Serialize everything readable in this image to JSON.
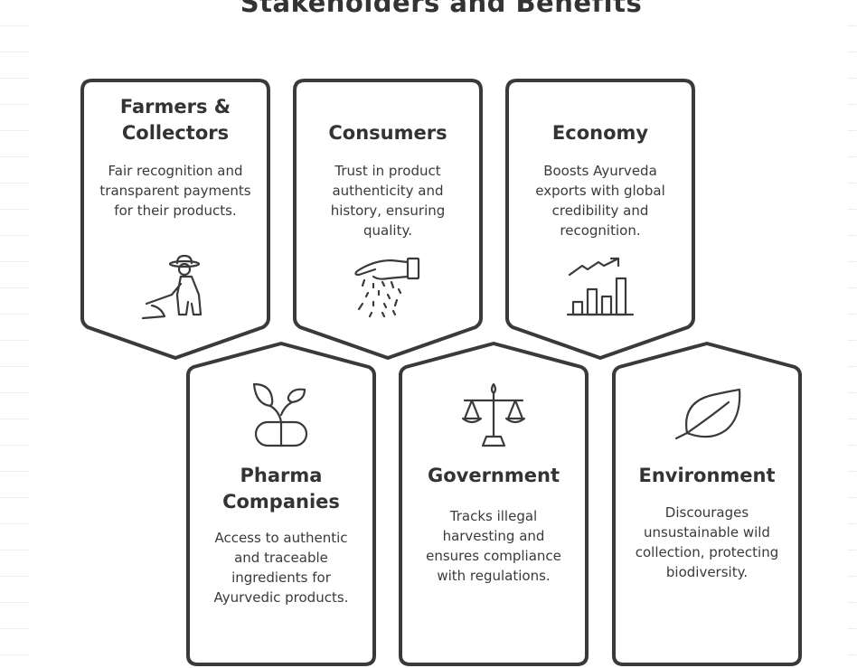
{
  "title": "Stakeholders and Benefits",
  "cards": [
    {
      "title": "Farmers & Collectors",
      "description": "Fair recognition and transparent payments for their products.",
      "icon": "farmer-icon"
    },
    {
      "title": "Consumers",
      "description": "Trust in product authenticity and history, ensuring quality.",
      "icon": "hand-sprinkling-icon"
    },
    {
      "title": "Economy",
      "description": "Boosts Ayurveda exports with global credibility and recognition.",
      "icon": "growth-chart-icon"
    },
    {
      "title": "Pharma Companies",
      "description": "Access to authentic and traceable ingredients for Ayurvedic products.",
      "icon": "sprouting-pill-icon"
    },
    {
      "title": "Government",
      "description": "Tracks illegal harvesting and ensures compliance with regulations.",
      "icon": "scales-icon"
    },
    {
      "title": "Environment",
      "description": "Discourages unsustainable wild collection, protecting biodiversity.",
      "icon": "leaf-icon"
    }
  ]
}
